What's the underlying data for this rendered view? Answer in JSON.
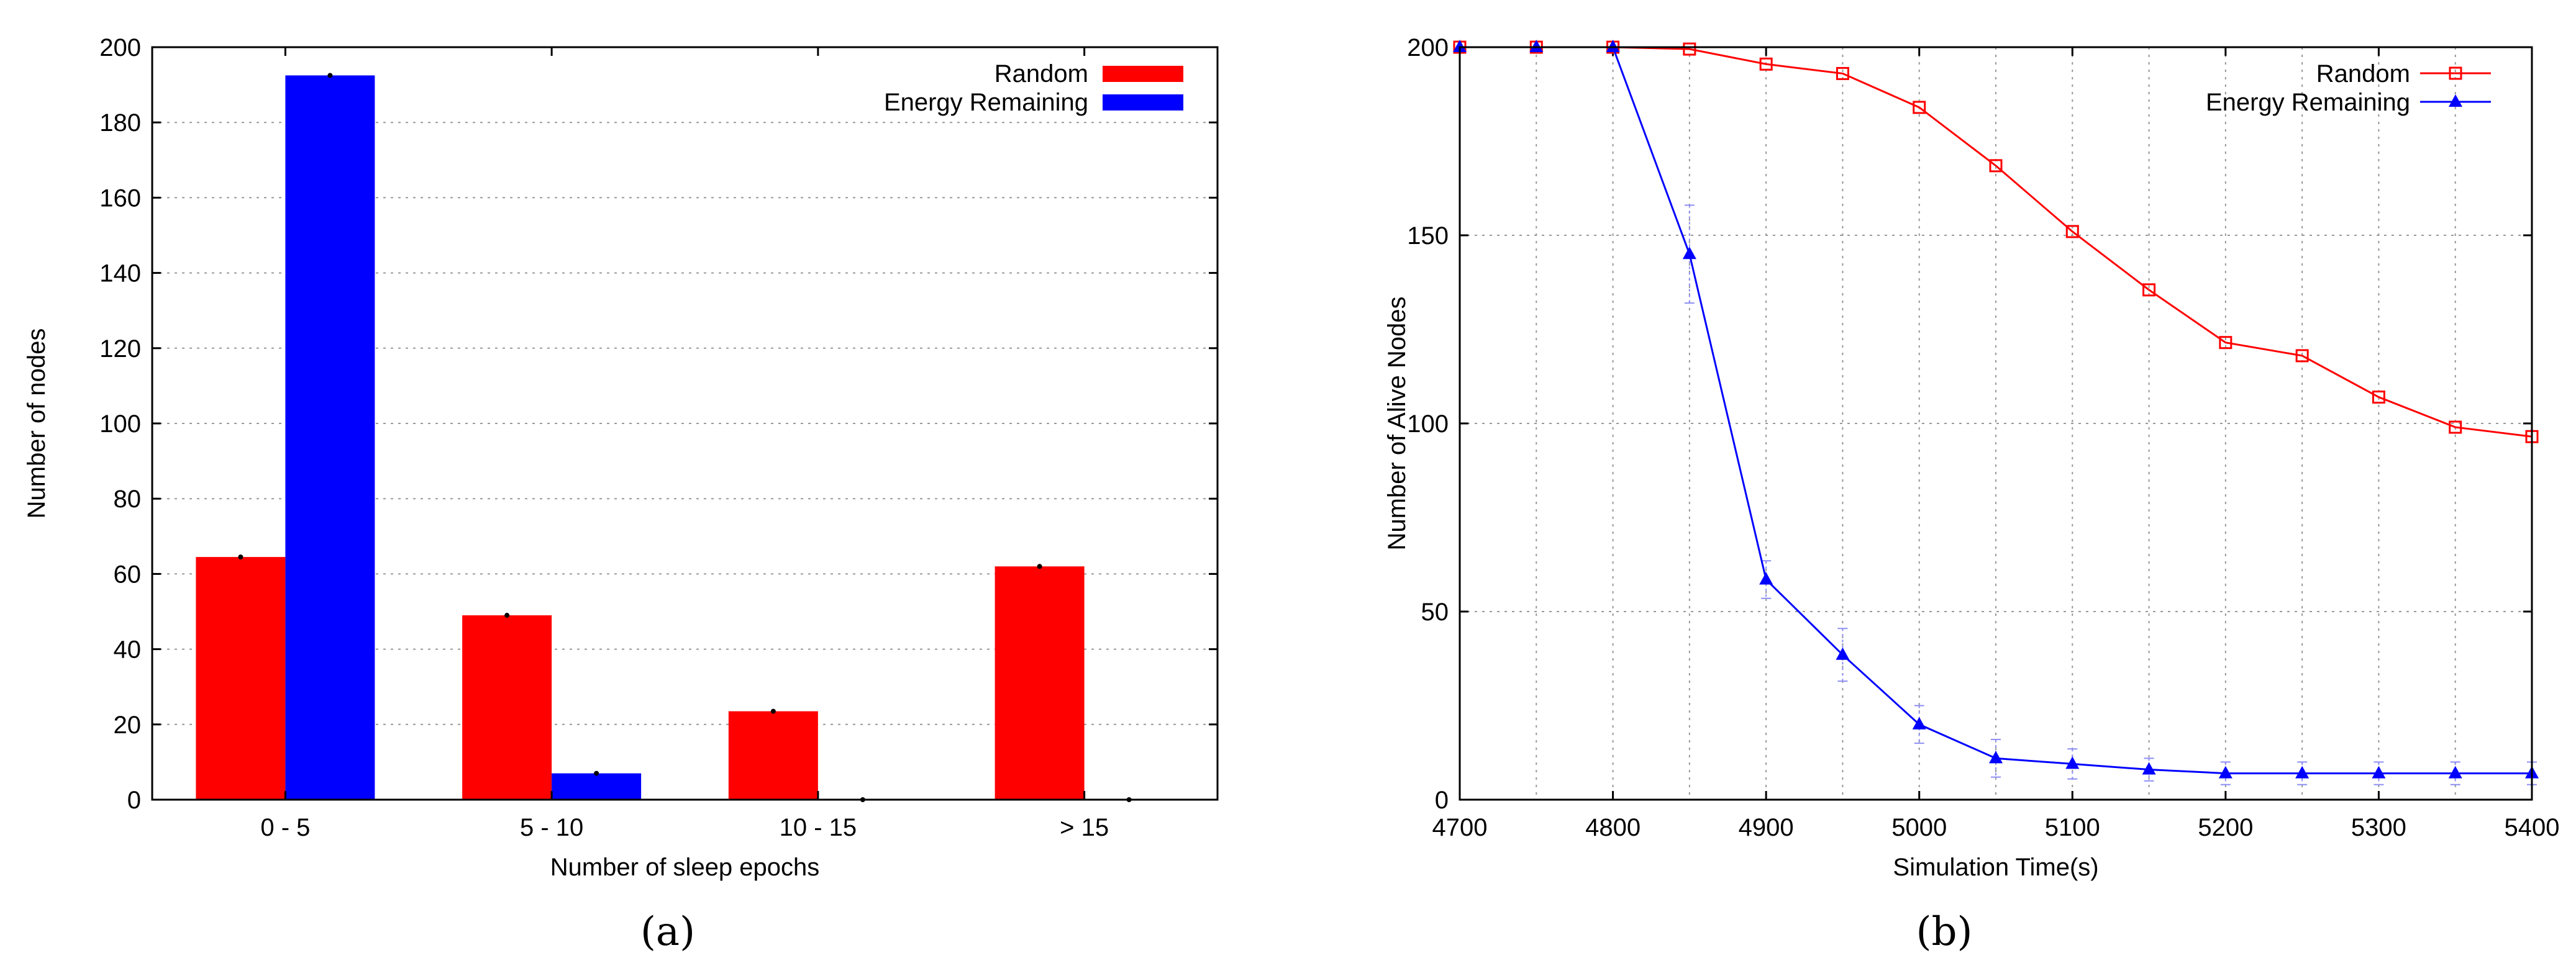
{
  "chart_data": [
    {
      "panel": "(a)",
      "type": "bar",
      "xlabel": "Number of sleep epochs",
      "ylabel": "Number of nodes",
      "categories": [
        "0 - 5",
        "5 - 10",
        "10 - 15",
        "> 15"
      ],
      "ylim": [
        0,
        200
      ],
      "yticks": [
        0,
        20,
        40,
        60,
        80,
        100,
        120,
        140,
        160,
        180,
        200
      ],
      "grid": true,
      "legend_position": "top-right",
      "series": [
        {
          "name": "Random",
          "color": "#ff0000",
          "values": [
            64.5,
            49,
            23.5,
            62
          ]
        },
        {
          "name": "Energy Remaining",
          "color": "#0000ff",
          "values": [
            192.5,
            7,
            0,
            0
          ]
        }
      ]
    },
    {
      "panel": "(b)",
      "type": "line",
      "xlabel": "Simulation Time(s)",
      "ylabel": "Number of Alive Nodes",
      "xlim": [
        4700,
        5400
      ],
      "ylim": [
        0,
        200
      ],
      "xticks": [
        4700,
        4800,
        4900,
        5000,
        5100,
        5200,
        5300,
        5400
      ],
      "yticks": [
        0,
        50,
        100,
        150,
        200
      ],
      "grid": true,
      "legend_position": "top-right",
      "x": [
        4700,
        4750,
        4800,
        4850,
        4900,
        4950,
        5000,
        5050,
        5100,
        5150,
        5200,
        5250,
        5300,
        5350,
        5400
      ],
      "series": [
        {
          "name": "Random",
          "color": "#ff0000",
          "marker": "square",
          "values": [
            200,
            200,
            200,
            199.5,
            195.5,
            193,
            184,
            168.5,
            151,
            135.5,
            121.5,
            118,
            107,
            99,
            96.5
          ]
        },
        {
          "name": "Energy Remaining",
          "color": "#0000ff",
          "marker": "triangle",
          "values": [
            200,
            200,
            200,
            145,
            58.5,
            38.5,
            20,
            11,
            9.5,
            8,
            7,
            7,
            7,
            7,
            7
          ],
          "error": [
            0,
            0,
            0,
            13,
            5,
            7,
            5,
            5,
            4,
            3,
            3,
            3,
            3,
            3,
            3
          ]
        }
      ]
    }
  ],
  "captions": {
    "a": "(a)",
    "b": "(b)"
  }
}
